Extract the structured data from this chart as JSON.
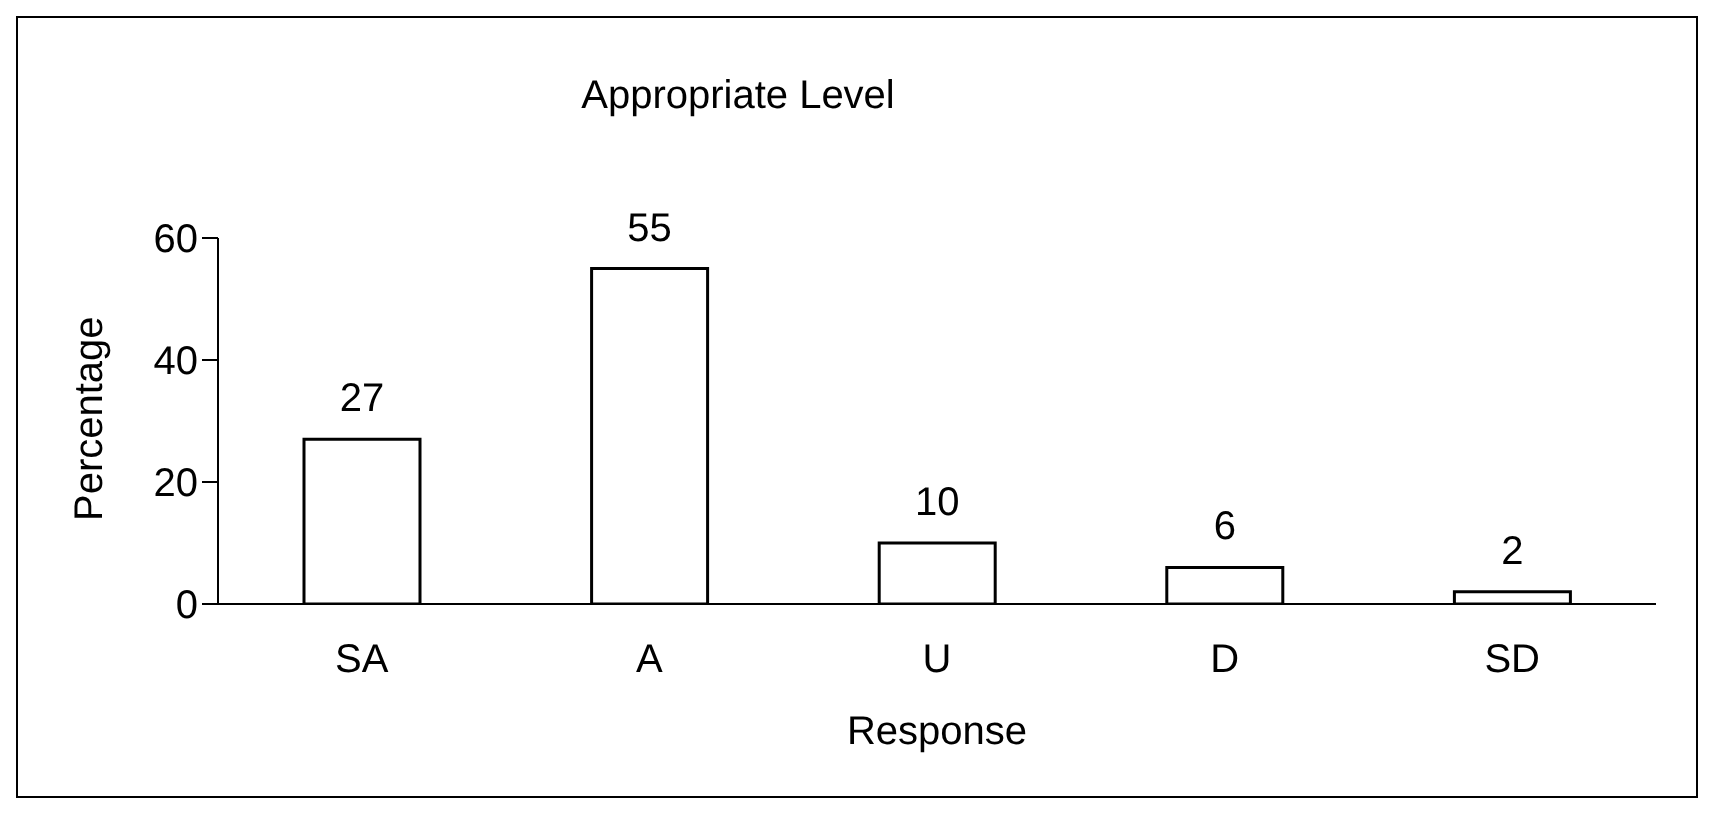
{
  "chart_data": {
    "type": "bar",
    "title": "Appropriate Level",
    "xlabel": "Response",
    "ylabel": "Percentage",
    "categories": [
      "SA",
      "A",
      "U",
      "D",
      "SD"
    ],
    "values": [
      27,
      55,
      10,
      6,
      2
    ],
    "color": "#ffffff",
    "ylim": [
      0,
      60
    ],
    "yticks": [
      0,
      20,
      40,
      60
    ],
    "data_labels": true,
    "grid": false
  }
}
